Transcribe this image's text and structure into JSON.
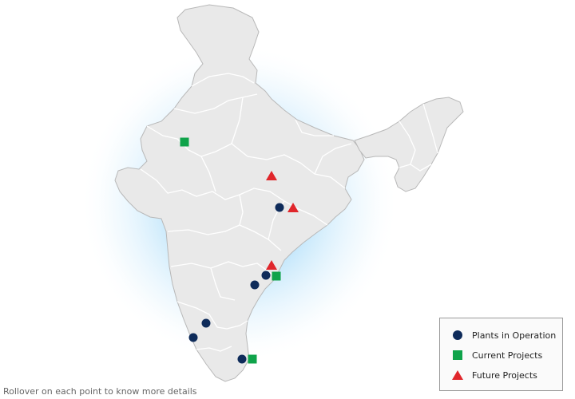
{
  "footnote": "Rollover on each point to know more details",
  "legend": {
    "items": [
      {
        "label": "Plants in Operation",
        "shape": "circle",
        "color": "#0e2b5a"
      },
      {
        "label": "Current Projects",
        "shape": "square",
        "color": "#0fa34a"
      },
      {
        "label": "Future Projects",
        "shape": "triangle",
        "color": "#e0262b"
      }
    ]
  },
  "colors": {
    "land": "#e9e9e9",
    "border": "#ffffff",
    "outline": "#b5b5b5",
    "glow": "#a9d9f7"
  }
}
